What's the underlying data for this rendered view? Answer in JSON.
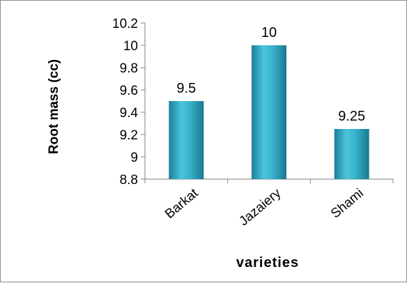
{
  "chart_data": {
    "type": "bar",
    "categories": [
      "Barkat",
      "Jazaiery",
      "Shami"
    ],
    "values": [
      9.5,
      10,
      9.25
    ],
    "data_labels": [
      "9.5",
      "10",
      "9.25"
    ],
    "xlabel": "varieties",
    "ylabel": "Root mass (cc)",
    "ylim": [
      8.8,
      10.2
    ],
    "yticks": [
      "10.2",
      "10",
      "9.8",
      "9.6",
      "9.4",
      "9.2",
      "9",
      "8.8"
    ],
    "grid": false,
    "legend": "none",
    "bar_color": "#2ba3c0"
  }
}
